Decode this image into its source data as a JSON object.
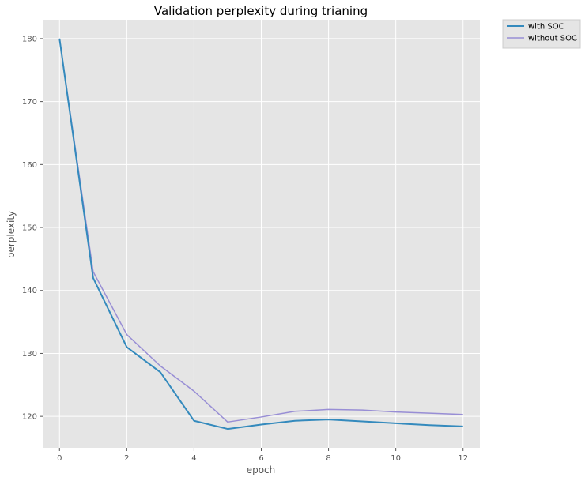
{
  "chart_data": {
    "type": "line",
    "title": "Validation perplexity during trianing",
    "xlabel": "epoch",
    "ylabel": "perplexity",
    "xlim": [
      -0.5,
      12.5
    ],
    "ylim": [
      115,
      183
    ],
    "xticks": [
      0,
      2,
      4,
      6,
      8,
      10,
      12
    ],
    "yticks": [
      120,
      130,
      140,
      150,
      160,
      170,
      180
    ],
    "grid": true,
    "legend_position": "outside top-right",
    "series": [
      {
        "name": "with SOC",
        "color": "#348ABD",
        "x": [
          0,
          1,
          2,
          3,
          4,
          5,
          6,
          7,
          8,
          9,
          10,
          11,
          12
        ],
        "values": [
          180,
          142,
          131,
          127,
          119.3,
          118,
          118.7,
          119.3,
          119.5,
          119.2,
          118.9,
          118.6,
          118.4
        ]
      },
      {
        "name": "without SOC",
        "color": "#988ED5",
        "x": [
          0,
          1,
          2,
          3,
          4,
          5,
          6,
          7,
          8,
          9,
          10,
          11,
          12
        ],
        "values": [
          180,
          143,
          133,
          128,
          124,
          119.1,
          119.9,
          120.8,
          121.1,
          121,
          120.7,
          120.5,
          120.3
        ]
      }
    ]
  }
}
